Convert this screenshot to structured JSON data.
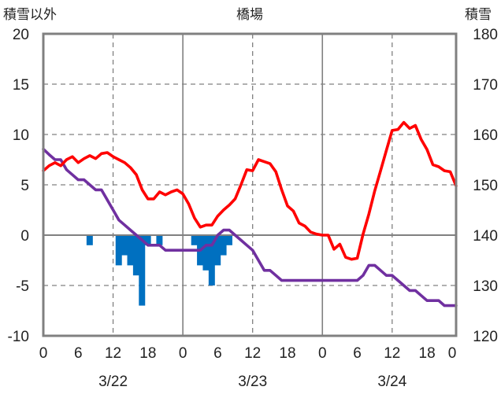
{
  "chart_data": {
    "type": "line",
    "title": "橋場",
    "ylabel_left": "積雪以外",
    "ylabel_right": "積雪",
    "ylim_left": [
      -10,
      20
    ],
    "ylim_right": [
      120,
      180
    ],
    "yticks_left": [
      "-10",
      "-5",
      "0",
      "5",
      "10",
      "15",
      "20"
    ],
    "yticks_right": [
      "120",
      "130",
      "140",
      "150",
      "160",
      "170",
      "180"
    ],
    "xlim": [
      0,
      71
    ],
    "xtick_positions": [
      0,
      6,
      12,
      18,
      24,
      30,
      36,
      42,
      48,
      54,
      60,
      66,
      72
    ],
    "xtick_labels": [
      "0",
      "6",
      "12",
      "18",
      "0",
      "6",
      "12",
      "18",
      "0",
      "6",
      "12",
      "18",
      "0"
    ],
    "day_labels": [
      {
        "x": 12,
        "label": "3/22"
      },
      {
        "x": 36,
        "label": "3/23"
      },
      {
        "x": 60,
        "label": "3/24"
      }
    ],
    "day_boundaries": [
      24,
      48
    ],
    "grid_dashed_x": [
      12,
      36,
      60
    ],
    "grid_dashed_y": [
      -5,
      5,
      10,
      15
    ],
    "colors": {
      "temperature": "#ff0000",
      "precipitation": "#0070c0",
      "snow_depth": "#7030a0",
      "frame": "#808080",
      "zero_line": "#808080",
      "grid": "#808080"
    },
    "series": [
      {
        "key": "temperature",
        "axis": "left",
        "type": "line",
        "values": [
          6.4,
          6.9,
          7.2,
          6.9,
          7.5,
          7.8,
          7.2,
          7.6,
          7.9,
          7.6,
          8.1,
          8.2,
          7.8,
          7.5,
          7.2,
          6.7,
          6.0,
          4.5,
          3.6,
          3.6,
          4.3,
          4.0,
          4.3,
          4.5,
          4.1,
          3.1,
          1.7,
          0.8,
          1.0,
          1.0,
          1.9,
          2.5,
          3.0,
          3.6,
          5.0,
          6.5,
          6.4,
          7.5,
          7.3,
          7.1,
          6.3,
          4.5,
          2.9,
          2.4,
          1.2,
          0.9,
          0.3,
          0.1,
          0.0,
          0.0,
          -1.4,
          -0.9,
          -2.2,
          -2.4,
          -2.3,
          0.1,
          2.1,
          4.4,
          6.4,
          8.4,
          10.4,
          10.5,
          11.2,
          10.6,
          10.9,
          9.5,
          8.5,
          7.0,
          6.8,
          6.4,
          6.3,
          4.9
        ]
      },
      {
        "key": "snow_depth",
        "axis": "right",
        "type": "line",
        "values": [
          157.1,
          156.0,
          155.0,
          155.0,
          153.0,
          152.0,
          151.0,
          151.0,
          150.0,
          149.0,
          149.0,
          147.0,
          145.0,
          143.0,
          142.0,
          141.0,
          140.0,
          139.0,
          138.0,
          138.0,
          138.0,
          137.0,
          137.0,
          137.0,
          137.0,
          137.0,
          137.0,
          137.0,
          138.0,
          138.0,
          140.0,
          141.0,
          141.0,
          140.0,
          139.0,
          138.0,
          137.0,
          135.0,
          133.0,
          133.0,
          132.0,
          131.0,
          131.0,
          131.0,
          131.0,
          131.0,
          131.0,
          131.0,
          131.0,
          131.0,
          131.0,
          131.0,
          131.0,
          131.0,
          131.0,
          132.0,
          134.0,
          134.0,
          133.0,
          132.0,
          132.0,
          131.0,
          130.0,
          129.0,
          129.0,
          128.0,
          127.0,
          127.0,
          127.0,
          126.0,
          126.0,
          126.0
        ]
      },
      {
        "key": "precipitation",
        "axis": "left",
        "type": "bar",
        "values": [
          0,
          0,
          0,
          0,
          0,
          0,
          0,
          -1.0,
          0,
          0,
          0,
          0,
          -3.0,
          -2.0,
          -3.0,
          -4.0,
          -7.0,
          -1.0,
          0,
          -1.0,
          0,
          0,
          0,
          0,
          0,
          -1.0,
          -3.0,
          -3.5,
          -5.0,
          -3.0,
          -2.0,
          -1.0,
          0,
          0,
          0,
          0,
          0,
          0,
          0,
          0,
          0,
          0,
          0,
          0,
          0,
          0,
          0,
          0,
          0,
          0,
          0,
          0,
          0,
          0,
          0,
          0,
          0,
          0,
          0,
          0,
          0,
          0,
          0,
          0,
          0,
          0,
          0,
          0,
          0,
          0,
          0,
          0
        ]
      }
    ]
  }
}
